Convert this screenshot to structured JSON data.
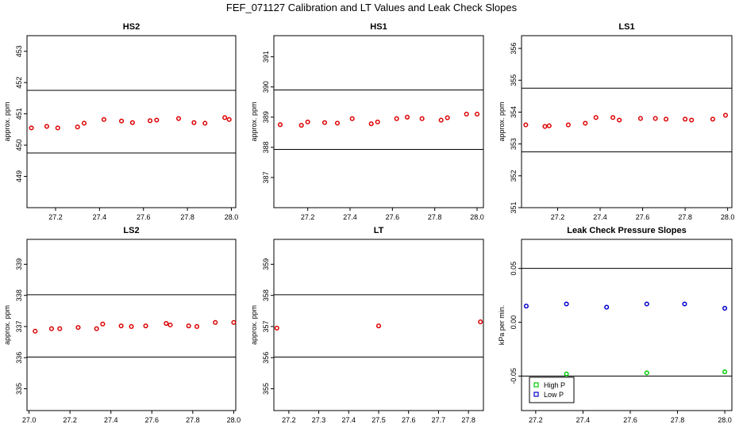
{
  "figure": {
    "title": "FEF_071127  Calibration and LT Values and Leak Check Slopes"
  },
  "chart_data": [
    {
      "type": "scatter",
      "title": "HS2",
      "ylabel": "approx. ppm",
      "xlim": [
        27.07,
        28.02
      ],
      "ylim": [
        448,
        453.5
      ],
      "xticks": [
        27.2,
        27.4,
        27.6,
        27.8,
        28.0
      ],
      "xtick_labels": [
        "27.2",
        "27.4",
        "27.6",
        "27.8",
        "28.0"
      ],
      "yticks": [
        449,
        450,
        451,
        452,
        453
      ],
      "ytick_labels": [
        "449",
        "450",
        "451",
        "452",
        "453"
      ],
      "hlines": [
        449.75,
        451.75
      ],
      "series": [
        {
          "color": "#dd0000",
          "marker": "circle",
          "x": [
            27.09,
            27.16,
            27.21,
            27.3,
            27.33,
            27.42,
            27.5,
            27.55,
            27.63,
            27.66,
            27.76,
            27.83,
            27.88,
            27.97,
            27.99
          ],
          "y": [
            450.55,
            450.6,
            450.55,
            450.58,
            450.7,
            450.82,
            450.77,
            450.72,
            450.78,
            450.8,
            450.85,
            450.72,
            450.7,
            450.88,
            450.82
          ]
        }
      ]
    },
    {
      "type": "scatter",
      "title": "HS1",
      "ylabel": "approx. ppm",
      "xlim": [
        27.04,
        28.03
      ],
      "ylim": [
        386,
        391.7
      ],
      "xticks": [
        27.2,
        27.4,
        27.6,
        27.8,
        28.0
      ],
      "xtick_labels": [
        "27.2",
        "27.4",
        "27.6",
        "27.8",
        "28.0"
      ],
      "yticks": [
        387,
        388,
        389,
        390,
        391
      ],
      "ytick_labels": [
        "387",
        "388",
        "389",
        "390",
        "391"
      ],
      "hlines": [
        387.93,
        389.9
      ],
      "series": [
        {
          "color": "#dd0000",
          "marker": "circle",
          "x": [
            27.07,
            27.17,
            27.2,
            27.28,
            27.34,
            27.41,
            27.5,
            27.53,
            27.62,
            27.67,
            27.74,
            27.83,
            27.86,
            27.95,
            28.0
          ],
          "y": [
            388.75,
            388.73,
            388.84,
            388.82,
            388.8,
            388.95,
            388.78,
            388.84,
            388.95,
            389.0,
            388.95,
            388.9,
            388.98,
            389.1,
            389.1
          ]
        }
      ]
    },
    {
      "type": "scatter",
      "title": "LS1",
      "ylabel": "approx. ppm",
      "xlim": [
        27.03,
        28.02
      ],
      "ylim": [
        351,
        356.4
      ],
      "xticks": [
        27.2,
        27.4,
        27.6,
        27.8,
        28.0
      ],
      "xtick_labels": [
        "27.2",
        "27.4",
        "27.6",
        "27.8",
        "28.0"
      ],
      "yticks": [
        351,
        352,
        353,
        354,
        355,
        356
      ],
      "ytick_labels": [
        "351",
        "352",
        "353",
        "354",
        "355",
        "356"
      ],
      "hlines": [
        352.75,
        354.75
      ],
      "series": [
        {
          "color": "#dd0000",
          "marker": "circle",
          "x": [
            27.05,
            27.14,
            27.16,
            27.25,
            27.33,
            27.38,
            27.46,
            27.49,
            27.59,
            27.66,
            27.71,
            27.8,
            27.83,
            27.93,
            27.99
          ],
          "y": [
            353.6,
            353.55,
            353.57,
            353.6,
            353.65,
            353.83,
            353.83,
            353.75,
            353.8,
            353.8,
            353.78,
            353.78,
            353.75,
            353.78,
            353.9
          ]
        }
      ]
    },
    {
      "type": "scatter",
      "title": "LS2",
      "ylabel": "approx. ppm",
      "xlim": [
        26.99,
        28.01
      ],
      "ylim": [
        334.3,
        339.8
      ],
      "xticks": [
        27.0,
        27.2,
        27.4,
        27.6,
        27.8,
        28.0
      ],
      "xtick_labels": [
        "27.0",
        "27.2",
        "27.4",
        "27.6",
        "27.8",
        "28.0"
      ],
      "yticks": [
        335,
        336,
        337,
        338,
        339
      ],
      "ytick_labels": [
        "335",
        "336",
        "337",
        "338",
        "339"
      ],
      "hlines": [
        336.02,
        338.02
      ],
      "series": [
        {
          "color": "#dd0000",
          "marker": "circle",
          "x": [
            27.03,
            27.11,
            27.15,
            27.24,
            27.33,
            27.36,
            27.45,
            27.5,
            27.57,
            27.67,
            27.69,
            27.78,
            27.82,
            27.91,
            28.0
          ],
          "y": [
            336.85,
            336.93,
            336.93,
            336.97,
            336.93,
            337.08,
            337.02,
            337.0,
            337.02,
            337.1,
            337.05,
            337.02,
            337.0,
            337.13,
            337.13
          ]
        }
      ]
    },
    {
      "type": "scatter",
      "title": "LT",
      "ylabel": "approx. ppm",
      "xlim": [
        27.15,
        27.85
      ],
      "ylim": [
        354.3,
        359.8
      ],
      "xticks": [
        27.2,
        27.3,
        27.4,
        27.5,
        27.6,
        27.7,
        27.8
      ],
      "xtick_labels": [
        "27.2",
        "27.3",
        "27.4",
        "27.5",
        "27.6",
        "27.7",
        "27.8"
      ],
      "yticks": [
        355,
        356,
        357,
        358,
        359
      ],
      "ytick_labels": [
        "355",
        "356",
        "357",
        "358",
        "359"
      ],
      "hlines": [
        356.02,
        358.02
      ],
      "series": [
        {
          "color": "#dd0000",
          "marker": "circle",
          "x": [
            27.16,
            27.5,
            27.84
          ],
          "y": [
            356.95,
            357.02,
            357.15
          ]
        }
      ]
    },
    {
      "type": "scatter",
      "title": "Leak Check Pressure Slopes",
      "ylabel": "kPa per min.",
      "xlim": [
        27.14,
        28.03
      ],
      "ylim": [
        -0.082,
        0.077
      ],
      "xticks": [
        27.2,
        27.4,
        27.6,
        27.8,
        28.0
      ],
      "xtick_labels": [
        "27.2",
        "27.4",
        "27.6",
        "27.8",
        "28.0"
      ],
      "yticks": [
        -0.05,
        0.0,
        0.05
      ],
      "ytick_labels": [
        "-0.05",
        "0.00",
        "0.05"
      ],
      "hlines": [
        -0.05,
        0.05
      ],
      "legend_position": "bottom-left",
      "series": [
        {
          "name": "High P",
          "color": "#00cc00",
          "marker": "circle",
          "x": [
            27.33,
            27.67,
            28.0
          ],
          "y": [
            -0.048,
            -0.047,
            -0.046
          ]
        },
        {
          "name": "Low P",
          "color": "#0000cc",
          "marker": "circle",
          "x": [
            27.16,
            27.33,
            27.5,
            27.67,
            27.83,
            28.0
          ],
          "y": [
            0.015,
            0.017,
            0.014,
            0.017,
            0.017,
            0.013
          ]
        }
      ]
    }
  ]
}
